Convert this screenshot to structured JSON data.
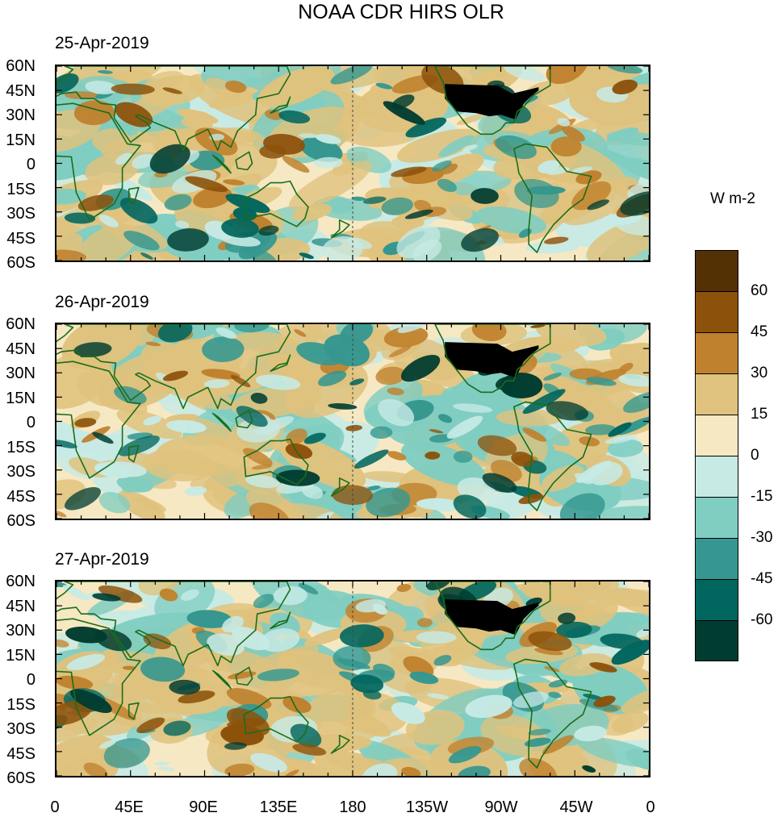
{
  "title": "NOAA CDR HIRS OLR",
  "panels": [
    {
      "date": "25-Apr-2019"
    },
    {
      "date": "26-Apr-2019"
    },
    {
      "date": "27-Apr-2019"
    }
  ],
  "lat_labels": [
    "60N",
    "45N",
    "30N",
    "15N",
    "0",
    "15S",
    "30S",
    "45S",
    "60S"
  ],
  "lon_labels": [
    "0",
    "45E",
    "90E",
    "135E",
    "180",
    "135W",
    "90W",
    "45W",
    "0"
  ],
  "colorbar": {
    "units": "W m-2",
    "labels": [
      "60",
      "45",
      "30",
      "15",
      "0",
      "-15",
      "-30",
      "-45",
      "-60"
    ],
    "colors": [
      "#543005",
      "#8c510a",
      "#bf812d",
      "#dfc27d",
      "#f6e8c3",
      "#c7eae5",
      "#80cdc1",
      "#35978f",
      "#01665e",
      "#003c30"
    ]
  },
  "map_colors": {
    "land_outline": "#1a6e1a",
    "dateline": "#444444"
  }
}
